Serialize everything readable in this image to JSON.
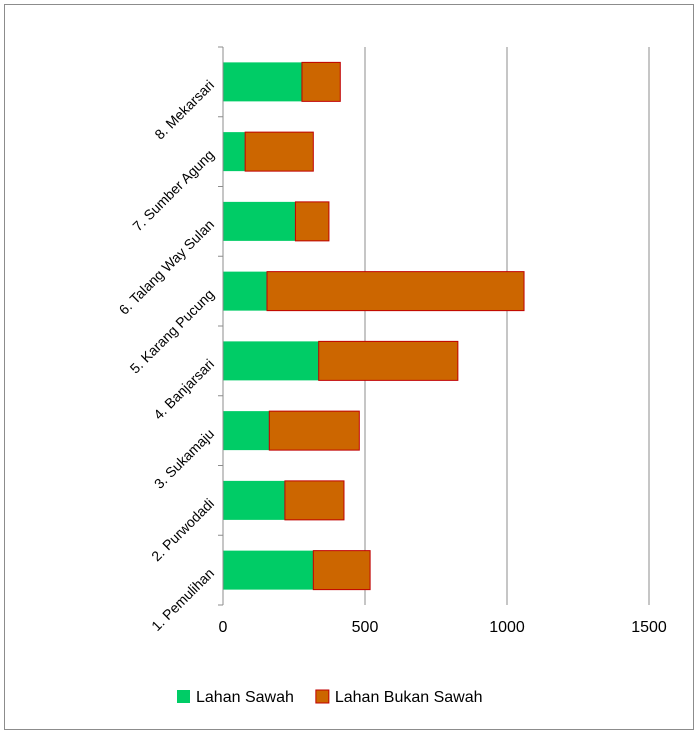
{
  "chart_data": {
    "type": "bar",
    "orientation": "horizontal",
    "stacked": true,
    "categories": [
      "1. Pemulihan",
      "2. Purwodadi",
      "3. Sukamaju",
      "4. Banjarsari",
      "5. Karang Pucung",
      "6. Talang Way Sulan",
      "7. Sumber Agung",
      "8. Mekarsari"
    ],
    "series": [
      {
        "name": "Lahan Sawah",
        "color": "#00cc66",
        "values": [
          318,
          218,
          163,
          337,
          155,
          255,
          78,
          278
        ]
      },
      {
        "name": "Lahan Bukan Sawah",
        "color": "#cc6600",
        "values": [
          200,
          208,
          317,
          490,
          905,
          118,
          240,
          135
        ]
      }
    ],
    "xlim": [
      0,
      1500
    ],
    "x_ticks": [
      "0",
      "500",
      "1000",
      "1500"
    ],
    "grid": "vertical",
    "legend_position": "bottom"
  }
}
